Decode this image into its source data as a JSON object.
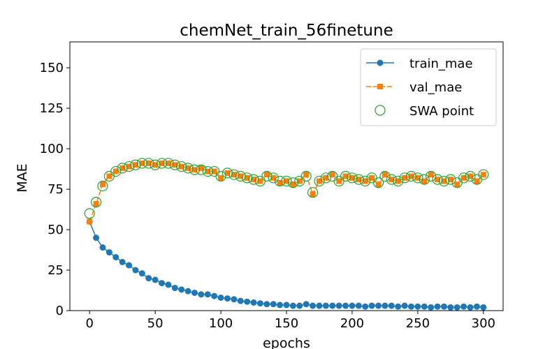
{
  "chart_data": {
    "type": "line",
    "title": "chemNet_train_56finetune",
    "xlabel": "epochs",
    "ylabel": "MAE",
    "x": [
      0,
      5,
      10,
      15,
      20,
      25,
      30,
      35,
      40,
      45,
      50,
      55,
      60,
      65,
      70,
      75,
      80,
      85,
      90,
      95,
      100,
      105,
      110,
      115,
      120,
      125,
      130,
      135,
      140,
      145,
      150,
      155,
      160,
      165,
      170,
      175,
      180,
      185,
      190,
      195,
      200,
      205,
      210,
      215,
      220,
      225,
      230,
      235,
      240,
      245,
      250,
      255,
      260,
      265,
      270,
      275,
      280,
      285,
      290,
      295,
      300
    ],
    "series": [
      {
        "name": "train_mae",
        "color": "#1f77b4",
        "linestyle": "solid",
        "marker": "circle",
        "values": [
          55,
          45,
          39,
          36,
          33,
          30,
          28,
          25,
          23,
          20,
          19,
          17,
          16,
          14,
          13,
          12,
          11,
          10,
          10,
          9,
          8,
          7.5,
          7,
          6,
          5.5,
          5,
          4.5,
          4,
          4,
          3.5,
          3.5,
          3,
          3,
          4,
          3,
          3,
          3,
          3,
          3,
          3,
          3,
          3,
          2.5,
          3,
          3,
          3,
          3,
          2.5,
          3,
          2.5,
          2.5,
          2.5,
          2,
          2.5,
          2.5,
          2,
          2,
          2.5,
          2,
          2.5,
          2
        ]
      },
      {
        "name": "val_mae",
        "color": "#ff7f0e",
        "linestyle": "dashed",
        "marker": "square",
        "values": [
          55,
          66,
          78,
          83,
          86,
          88,
          89,
          90,
          91,
          91,
          90,
          91,
          91,
          90,
          89,
          88,
          87,
          88,
          86,
          86,
          82,
          85,
          84,
          83,
          82,
          81,
          80,
          84,
          82,
          79,
          80,
          78,
          80,
          84,
          72,
          80,
          82,
          84,
          80,
          83,
          82,
          81,
          80,
          82,
          78,
          84,
          81,
          80,
          82,
          83,
          82,
          80,
          84,
          81,
          80,
          81,
          78,
          82,
          83,
          80,
          84
        ]
      },
      {
        "name": "SWA point",
        "color": "#2ca02c",
        "linestyle": "none",
        "marker": "hollow-circle",
        "values": [
          60,
          67,
          77,
          83,
          86,
          88,
          89,
          90,
          91,
          91,
          90,
          91,
          91,
          90,
          89,
          88,
          87,
          87,
          86,
          86,
          83,
          85,
          84,
          83,
          82,
          81,
          80,
          83,
          82,
          80,
          80,
          79,
          80,
          83,
          73,
          80,
          82,
          83,
          80,
          83,
          82,
          81,
          80,
          82,
          79,
          83,
          81,
          80,
          82,
          83,
          82,
          81,
          83,
          81,
          80,
          81,
          79,
          82,
          83,
          81,
          84
        ]
      }
    ],
    "xlim": [
      -15,
      315
    ],
    "ylim": [
      0,
      166
    ],
    "xticks": [
      0,
      50,
      100,
      150,
      200,
      250,
      300
    ],
    "yticks": [
      0,
      25,
      50,
      75,
      100,
      125,
      150
    ],
    "grid": false,
    "legend": "upper right"
  }
}
